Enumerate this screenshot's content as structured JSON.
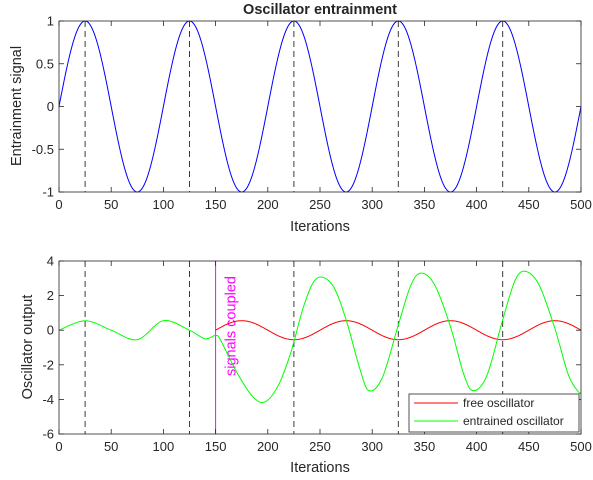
{
  "chart_data": [
    {
      "type": "line",
      "title": "Oscillator entrainment",
      "xlabel": "Iterations",
      "ylabel": "Entrainment signal",
      "xlim": [
        0,
        500
      ],
      "ylim": [
        -1,
        1
      ],
      "xticks": [
        0,
        50,
        100,
        150,
        200,
        250,
        300,
        350,
        400,
        450,
        500
      ],
      "yticks": [
        -1,
        -0.5,
        0,
        0.5,
        1
      ],
      "xtick_labels": [
        "0",
        "50",
        "100",
        "150",
        "200",
        "250",
        "300",
        "350",
        "400",
        "450",
        "500"
      ],
      "ytick_labels": [
        "-1",
        "-0.5",
        "0",
        "0.5",
        "1"
      ],
      "grid": false,
      "vlines": [
        25,
        125,
        225,
        325,
        425
      ],
      "series": [
        {
          "period": 100,
          "amplitude": 1,
          "color": "#0000ff"
        }
      ]
    },
    {
      "type": "line",
      "title": "",
      "xlabel": "Iterations",
      "ylabel": "Oscillator output",
      "xlim": [
        0,
        500
      ],
      "ylim": [
        -6,
        4
      ],
      "xticks": [
        0,
        50,
        100,
        150,
        200,
        250,
        300,
        350,
        400,
        450,
        500
      ],
      "yticks": [
        -6,
        -4,
        -2,
        0,
        2,
        4
      ],
      "xtick_labels": [
        "0",
        "50",
        "100",
        "150",
        "200",
        "250",
        "300",
        "350",
        "400",
        "450",
        "500"
      ],
      "ytick_labels": [
        "-6",
        "-4",
        "-2",
        "0",
        "2",
        "4"
      ],
      "grid": false,
      "vlines": [
        25,
        125,
        225,
        325,
        425
      ],
      "event_line": {
        "x": 150,
        "label": "signals coupled",
        "color": "#ff00ff"
      },
      "legend": {
        "location": "bottom-right"
      },
      "series": [
        {
          "name": "free oscillator",
          "color": "#ff0000",
          "start": 150,
          "period": 100,
          "amplitude": 0.55,
          "phase_peak_x": 175
        },
        {
          "name": "entrained oscillator",
          "color": "#00ff00",
          "period": 100,
          "points": [
            [
              0,
              0
            ],
            [
              25,
              0.55
            ],
            [
              50,
              0
            ],
            [
              75,
              -0.55
            ],
            [
              100,
              0.55
            ],
            [
              125,
              0
            ],
            [
              140,
              -0.5
            ],
            [
              150,
              -0.3
            ],
            [
              155,
              -0.6
            ],
            [
              170,
              -2.4
            ],
            [
              185,
              -3.8
            ],
            [
              197,
              -4.15
            ],
            [
              210,
              -3.2
            ],
            [
              222,
              -1.3
            ],
            [
              235,
              1.5
            ],
            [
              247,
              3.0
            ],
            [
              262,
              2.6
            ],
            [
              275,
              0.6
            ],
            [
              288,
              -2.2
            ],
            [
              297,
              -3.5
            ],
            [
              310,
              -2.7
            ],
            [
              325,
              0.3
            ],
            [
              337,
              2.6
            ],
            [
              347,
              3.3
            ],
            [
              360,
              2.6
            ],
            [
              375,
              0.2
            ],
            [
              388,
              -2.6
            ],
            [
              397,
              -3.5
            ],
            [
              410,
              -2.6
            ],
            [
              425,
              0.6
            ],
            [
              437,
              2.9
            ],
            [
              447,
              3.4
            ],
            [
              460,
              2.6
            ],
            [
              475,
              0.1
            ],
            [
              488,
              -2.6
            ],
            [
              498,
              -3.6
            ],
            [
              500,
              -3.55
            ]
          ]
        }
      ]
    }
  ]
}
